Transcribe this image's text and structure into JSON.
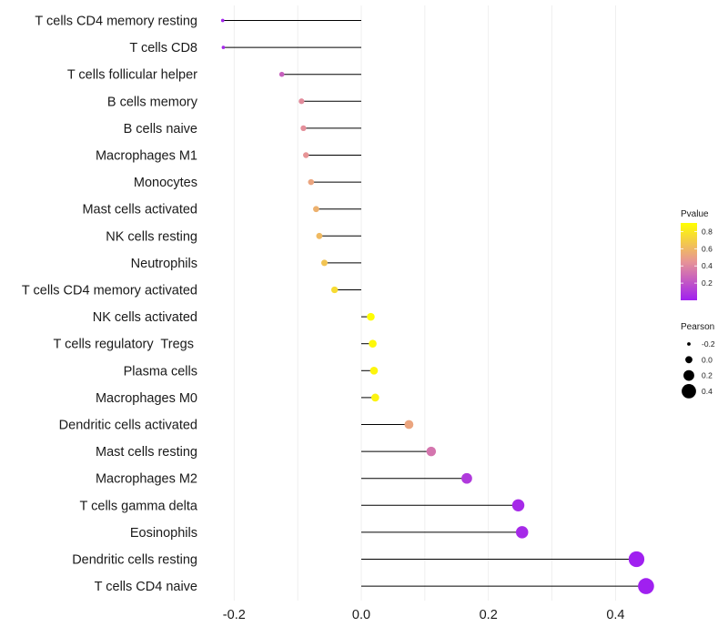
{
  "chart_data": {
    "type": "lollipop",
    "categories": [
      "T cells CD4 memory resting",
      "T cells CD8",
      "T cells follicular helper",
      "B cells memory",
      "B cells naive",
      "Macrophages M1",
      "Monocytes",
      "Mast cells activated",
      "NK cells resting",
      "Neutrophils",
      "T cells CD4 memory activated",
      "NK cells activated",
      "T cells regulatory  Tregs ",
      "Plasma cells",
      "Macrophages M0",
      "Dendritic cells activated",
      "Mast cells resting",
      "Macrophages M2",
      "T cells gamma delta",
      "Eosinophils",
      "Dendritic cells resting",
      "T cells CD4 naive"
    ],
    "pearson": [
      -0.218,
      -0.217,
      -0.125,
      -0.094,
      -0.091,
      -0.087,
      -0.079,
      -0.071,
      -0.066,
      -0.058,
      -0.042,
      0.015,
      0.018,
      0.02,
      0.022,
      0.075,
      0.11,
      0.166,
      0.247,
      0.253,
      0.433,
      0.448
    ],
    "pvalue": [
      0.02,
      0.03,
      0.25,
      0.42,
      0.43,
      0.45,
      0.52,
      0.57,
      0.61,
      0.65,
      0.75,
      0.89,
      0.87,
      0.86,
      0.85,
      0.52,
      0.33,
      0.1,
      0.04,
      0.04,
      0.0,
      0.0
    ],
    "x_ticks": [
      "-0.2",
      "0.0",
      "0.2",
      "0.4"
    ],
    "x_tick_values": [
      -0.2,
      0.0,
      0.2,
      0.4
    ],
    "xlim": [
      -0.255,
      0.47
    ],
    "legend_color": {
      "title": "Pvalue",
      "labels": [
        "0.8",
        "0.6",
        "0.4",
        "0.2"
      ],
      "values": [
        0.8,
        0.6,
        0.4,
        0.2
      ],
      "range": [
        0.0,
        0.9
      ],
      "low_color": "#a020f0",
      "mid_color": "#e79496",
      "high_color": "#ffff00"
    },
    "legend_size": {
      "title": "Pearson",
      "labels": [
        "-0.2",
        "0.0",
        "0.2",
        "0.4"
      ],
      "values": [
        -0.2,
        0.0,
        0.2,
        0.4
      ]
    },
    "legend_position": "right",
    "grid": true
  }
}
